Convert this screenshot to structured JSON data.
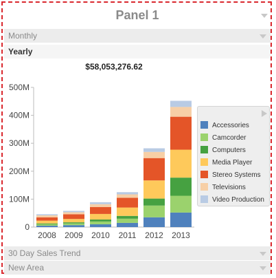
{
  "panel": {
    "title": "Panel 1"
  },
  "sections": {
    "monthly": "Monthly",
    "yearly": "Yearly",
    "trend": "30 Day Sales Trend",
    "new_area": "New Area"
  },
  "total": "$58,053,276.62",
  "chart_data": {
    "type": "bar",
    "stacked": true,
    "categories": [
      "2008",
      "2009",
      "2010",
      "2011",
      "2012",
      "2013"
    ],
    "yticks": [
      "0",
      "100M",
      "200M",
      "300M",
      "400M",
      "500M"
    ],
    "ylim": [
      0,
      500
    ],
    "legend_placement": "right",
    "series": [
      {
        "name": "Accessories",
        "color": "#4f81bd",
        "values": [
          5,
          7,
          10,
          15,
          35,
          52
        ]
      },
      {
        "name": "Camcorder",
        "color": "#9bd26d",
        "values": [
          5,
          6,
          10,
          15,
          42,
          60
        ]
      },
      {
        "name": "Computers",
        "color": "#46a141",
        "values": [
          3,
          4,
          7,
          10,
          25,
          65
        ]
      },
      {
        "name": "Media Player",
        "color": "#fec95b",
        "values": [
          10,
          12,
          20,
          30,
          65,
          100
        ]
      },
      {
        "name": "Stereo Systems",
        "color": "#e45528",
        "values": [
          12,
          17,
          25,
          35,
          80,
          118
        ]
      },
      {
        "name": "Televisions",
        "color": "#f7cfa6",
        "values": [
          7,
          7,
          10,
          12,
          22,
          35
        ]
      },
      {
        "name": "Video Production",
        "color": "#b9cbe4",
        "values": [
          4,
          5,
          7,
          8,
          13,
          22
        ]
      }
    ]
  }
}
